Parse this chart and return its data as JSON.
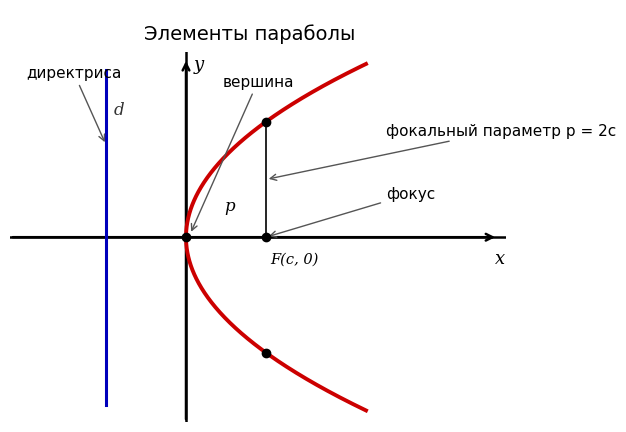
{
  "title": "Элементы параболы",
  "title_bg": "#cce4f5",
  "parabola_color": "#cc0000",
  "parabola_lw": 2.8,
  "axis_color": "#000000",
  "directrix_color": "#0000bb",
  "directrix_x": -1.0,
  "focus_x": 1.0,
  "focus_y": 0.0,
  "vertex_x": 0.0,
  "vertex_y": 0.0,
  "c": 1.0,
  "annotation_directrix": "директриса",
  "annotation_vershina": "вершина",
  "annotation_fokus": "фокус",
  "annotation_focal_param": "фокальный параметр p = 2c",
  "label_d": "d",
  "label_x": "x",
  "label_y": "y",
  "label_F": "F(c, 0)",
  "label_p": "p",
  "bg_color": "#ffffff",
  "dot_color": "#000000",
  "dot_size": 6,
  "xlim": [
    -2.2,
    4.0
  ],
  "ylim": [
    -3.2,
    3.2
  ]
}
